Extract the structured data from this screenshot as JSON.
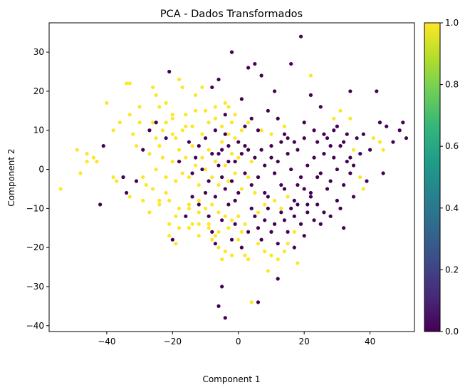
{
  "chart_data": {
    "type": "scatter",
    "title": "PCA - Dados Transformados",
    "xlabel": "Component 1",
    "ylabel": "Component 2",
    "xlim": [
      -57.5,
      53.5
    ],
    "ylim": [
      -41.5,
      37.5
    ],
    "xticks": [
      -40,
      -20,
      0,
      20,
      40
    ],
    "yticks": [
      -40,
      -30,
      -20,
      -10,
      0,
      10,
      20,
      30
    ],
    "grid": false,
    "colorbar": {
      "colormap": "viridis",
      "range": [
        0,
        1
      ],
      "ticks": [
        "0.0",
        "0.2",
        "0.4",
        "0.6",
        "0.8",
        "1.0"
      ],
      "stops": [
        "#440154",
        "#482878",
        "#3e4989",
        "#31688e",
        "#26828e",
        "#1f9e89",
        "#35b779",
        "#6ece58",
        "#b5de2b",
        "#fde725"
      ]
    },
    "series": [
      {
        "class_value": 1,
        "color": "#fde725",
        "points": [
          [
            -54,
            -5
          ],
          [
            -49,
            5
          ],
          [
            -48,
            -1
          ],
          [
            -46,
            4
          ],
          [
            -46,
            2
          ],
          [
            -44,
            3
          ],
          [
            -43,
            2
          ],
          [
            -40,
            17
          ],
          [
            -38,
            10
          ],
          [
            -38,
            -2
          ],
          [
            -37,
            -3
          ],
          [
            -36,
            12
          ],
          [
            -34,
            22
          ],
          [
            -33,
            22
          ],
          [
            -33,
            14
          ],
          [
            -33,
            -7
          ],
          [
            -32,
            9
          ],
          [
            -31,
            6
          ],
          [
            -30,
            16
          ],
          [
            -29,
            -2
          ],
          [
            -28,
            -4
          ],
          [
            -27,
            -11
          ],
          [
            -26,
            21
          ],
          [
            -25,
            19
          ],
          [
            -24,
            16
          ],
          [
            -24,
            -8
          ],
          [
            -22,
            17
          ],
          [
            -22,
            -6
          ],
          [
            -21,
            -17
          ],
          [
            -20,
            14
          ],
          [
            -20,
            13
          ],
          [
            -19,
            -12
          ],
          [
            -19,
            -19
          ],
          [
            -18,
            23
          ],
          [
            -17,
            21
          ],
          [
            -16,
            11
          ],
          [
            -15,
            -10
          ],
          [
            -14,
            -14
          ],
          [
            -13,
            19
          ],
          [
            -12,
            -8
          ],
          [
            -12,
            -17
          ],
          [
            -11,
            21
          ],
          [
            -10,
            -6
          ],
          [
            -9,
            -14
          ],
          [
            -8,
            -18
          ],
          [
            -7,
            -17
          ],
          [
            -6,
            -20
          ],
          [
            -5,
            -23
          ],
          [
            -4,
            -21
          ],
          [
            -3,
            16
          ],
          [
            -2,
            12
          ],
          [
            -2,
            -22
          ],
          [
            0,
            -18
          ],
          [
            1,
            -16
          ],
          [
            2,
            -22
          ],
          [
            3,
            -23
          ],
          [
            4,
            -34
          ],
          [
            6,
            -19
          ],
          [
            8,
            -21
          ],
          [
            9,
            -26
          ],
          [
            10,
            -22
          ],
          [
            12,
            -23
          ],
          [
            14,
            -21
          ],
          [
            15,
            -19
          ],
          [
            17,
            -16
          ],
          [
            18,
            -24
          ],
          [
            22,
            24
          ],
          [
            29,
            13
          ],
          [
            31,
            15
          ],
          [
            34,
            13
          ],
          [
            35,
            5
          ],
          [
            37,
            -2
          ],
          [
            38,
            -5
          ],
          [
            41,
            8
          ],
          [
            43,
            7
          ],
          [
            44,
            5
          ],
          [
            -26,
            -5
          ],
          [
            -25,
            0
          ],
          [
            -23,
            3
          ],
          [
            -22,
            -2
          ],
          [
            -20,
            2
          ],
          [
            -19,
            -3
          ],
          [
            -18,
            5
          ],
          [
            -17,
            -1
          ],
          [
            -16,
            3
          ],
          [
            -15,
            -2
          ],
          [
            -14,
            6
          ],
          [
            -13,
            1
          ],
          [
            -12,
            -4
          ],
          [
            -11,
            3
          ],
          [
            -10,
            0
          ],
          [
            -9,
            5
          ],
          [
            -8,
            -2
          ],
          [
            -7,
            2
          ],
          [
            -6,
            -4
          ],
          [
            -5,
            7
          ],
          [
            -4,
            1
          ],
          [
            -3,
            -3
          ],
          [
            -2,
            4
          ],
          [
            -1,
            -1
          ],
          [
            0,
            3
          ],
          [
            1,
            -5
          ],
          [
            2,
            6
          ],
          [
            3,
            -2
          ],
          [
            4,
            2
          ],
          [
            5,
            -6
          ],
          [
            -25,
            8
          ],
          [
            -24,
            -9
          ],
          [
            -23,
            10
          ],
          [
            -21,
            -8
          ],
          [
            -20,
            9
          ],
          [
            -18,
            -10
          ],
          [
            -17,
            10
          ],
          [
            -15,
            -9
          ],
          [
            -14,
            11
          ],
          [
            -12,
            -11
          ],
          [
            -11,
            9
          ],
          [
            -10,
            -10
          ],
          [
            -9,
            12
          ],
          [
            -8,
            -9
          ],
          [
            -7,
            13
          ],
          [
            -6,
            -11
          ],
          [
            -5,
            11
          ],
          [
            -4,
            -12
          ],
          [
            -3,
            9
          ],
          [
            -2,
            -13
          ],
          [
            -1,
            8
          ],
          [
            0,
            -12
          ],
          [
            1,
            10
          ],
          [
            2,
            -14
          ],
          [
            3,
            12
          ],
          [
            6,
            -11
          ],
          [
            7,
            10
          ],
          [
            8,
            -9
          ],
          [
            10,
            9
          ],
          [
            11,
            -8
          ],
          [
            12,
            13
          ],
          [
            13,
            -10
          ],
          [
            14,
            11
          ],
          [
            15,
            -7
          ],
          [
            -30,
            12
          ],
          [
            -29,
            -8
          ],
          [
            -27,
            4
          ],
          [
            -26,
            12
          ],
          [
            -24,
            6
          ],
          [
            -22,
            12
          ],
          [
            -21,
            -14
          ],
          [
            -19,
            8
          ],
          [
            -18,
            -15
          ],
          [
            -16,
            14
          ],
          [
            -15,
            -15
          ],
          [
            -13,
            15
          ],
          [
            -12,
            -14
          ],
          [
            -10,
            15
          ],
          [
            -9,
            -15
          ],
          [
            -7,
            16
          ],
          [
            -6,
            -16
          ],
          [
            -4,
            17
          ],
          [
            -3,
            -15
          ],
          [
            -1,
            14
          ]
        ]
      },
      {
        "class_value": 0,
        "color": "#440154",
        "points": [
          [
            -42,
            -9
          ],
          [
            -41,
            6
          ],
          [
            -35,
            -2
          ],
          [
            -34,
            -6
          ],
          [
            -31,
            -3
          ],
          [
            -29,
            5
          ],
          [
            -27,
            10
          ],
          [
            -25,
            12
          ],
          [
            -22,
            8
          ],
          [
            -21,
            25
          ],
          [
            -20,
            -18
          ],
          [
            -18,
            2
          ],
          [
            -16,
            -12
          ],
          [
            -14,
            -1
          ],
          [
            -12,
            6
          ],
          [
            -10,
            -6
          ],
          [
            -8,
            21
          ],
          [
            -7,
            10
          ],
          [
            -6,
            23
          ],
          [
            -5,
            -2
          ],
          [
            -4,
            14
          ],
          [
            -3,
            2
          ],
          [
            -2,
            30
          ],
          [
            -1,
            -8
          ],
          [
            1,
            18
          ],
          [
            2,
            6
          ],
          [
            3,
            26
          ],
          [
            4,
            -10
          ],
          [
            5,
            27
          ],
          [
            6,
            10
          ],
          [
            7,
            24
          ],
          [
            8,
            -6
          ],
          [
            9,
            15
          ],
          [
            10,
            3
          ],
          [
            11,
            20
          ],
          [
            12,
            13
          ],
          [
            13,
            -11
          ],
          [
            14,
            9
          ],
          [
            15,
            4
          ],
          [
            16,
            27
          ],
          [
            17,
            7
          ],
          [
            18,
            -4
          ],
          [
            19,
            34
          ],
          [
            20,
            12
          ],
          [
            21,
            -9
          ],
          [
            22,
            19
          ],
          [
            23,
            10
          ],
          [
            24,
            -2
          ],
          [
            25,
            16
          ],
          [
            26,
            9
          ],
          [
            27,
            -5
          ],
          [
            28,
            6
          ],
          [
            29,
            3
          ],
          [
            30,
            11
          ],
          [
            31,
            -10
          ],
          [
            32,
            7
          ],
          [
            33,
            2
          ],
          [
            34,
            20
          ],
          [
            35,
            -7
          ],
          [
            36,
            8
          ],
          [
            37,
            4
          ],
          [
            38,
            9
          ],
          [
            39,
            -3
          ],
          [
            40,
            5
          ],
          [
            42,
            20
          ],
          [
            43,
            12
          ],
          [
            44,
            -1
          ],
          [
            45,
            11
          ],
          [
            47,
            7
          ],
          [
            49,
            10
          ],
          [
            50,
            12
          ],
          [
            51,
            8
          ],
          [
            -6,
            -35
          ],
          [
            -5,
            -30
          ],
          [
            -4,
            -38
          ],
          [
            6,
            -34
          ],
          [
            12,
            -28
          ],
          [
            17,
            -20
          ],
          [
            20,
            -17
          ],
          [
            23,
            -13
          ],
          [
            26,
            -11
          ],
          [
            28,
            -12
          ],
          [
            30,
            -8
          ],
          [
            32,
            -15
          ],
          [
            34,
            -1
          ],
          [
            -9,
            -3
          ],
          [
            -8,
            4
          ],
          [
            -7,
            -7
          ],
          [
            -6,
            1
          ],
          [
            -5,
            5
          ],
          [
            -4,
            -5
          ],
          [
            -3,
            6
          ],
          [
            -2,
            -3
          ],
          [
            -1,
            2
          ],
          [
            0,
            -6
          ],
          [
            1,
            4
          ],
          [
            2,
            -1
          ],
          [
            3,
            5
          ],
          [
            4,
            -4
          ],
          [
            5,
            3
          ],
          [
            6,
            -2
          ],
          [
            7,
            5
          ],
          [
            8,
            1
          ],
          [
            9,
            -7
          ],
          [
            10,
            6
          ],
          [
            11,
            -1
          ],
          [
            12,
            2
          ],
          [
            13,
            7
          ],
          [
            14,
            -5
          ],
          [
            15,
            8
          ],
          [
            16,
            0
          ],
          [
            17,
            -8
          ],
          [
            18,
            5
          ],
          [
            19,
            -2
          ],
          [
            20,
            8
          ],
          [
            21,
            1
          ],
          [
            22,
            -6
          ],
          [
            23,
            3
          ],
          [
            24,
            7
          ],
          [
            25,
            -1
          ],
          [
            26,
            4
          ],
          [
            27,
            8
          ],
          [
            28,
            -3
          ],
          [
            29,
            10
          ],
          [
            30,
            0
          ],
          [
            31,
            6
          ],
          [
            32,
            -4
          ],
          [
            33,
            9
          ],
          [
            34,
            3
          ],
          [
            35,
            1
          ],
          [
            -15,
            7
          ],
          [
            -14,
            -7
          ],
          [
            -13,
            3
          ],
          [
            -12,
            -9
          ],
          [
            -11,
            0
          ],
          [
            -10,
            8
          ],
          [
            -9,
            -12
          ],
          [
            -8,
            -16
          ],
          [
            -7,
            -19
          ],
          [
            -6,
            4
          ],
          [
            -5,
            -13
          ],
          [
            -4,
            9
          ],
          [
            -3,
            -9
          ],
          [
            -2,
            -18
          ],
          [
            -1,
            -14
          ],
          [
            0,
            7
          ],
          [
            1,
            -20
          ],
          [
            2,
            11
          ],
          [
            3,
            -16
          ],
          [
            4,
            13
          ],
          [
            5,
            -12
          ],
          [
            6,
            -15
          ],
          [
            7,
            -18
          ],
          [
            8,
            -13
          ],
          [
            9,
            -10
          ],
          [
            10,
            -16
          ],
          [
            11,
            -14
          ],
          [
            12,
            -19
          ],
          [
            13,
            -4
          ],
          [
            14,
            -13
          ],
          [
            15,
            -16
          ],
          [
            16,
            -10
          ],
          [
            17,
            -12
          ],
          [
            18,
            -9
          ],
          [
            19,
            -14
          ],
          [
            20,
            -5
          ],
          [
            21,
            -11
          ],
          [
            22,
            -7
          ],
          [
            24,
            -9
          ],
          [
            25,
            -14
          ]
        ]
      }
    ]
  }
}
